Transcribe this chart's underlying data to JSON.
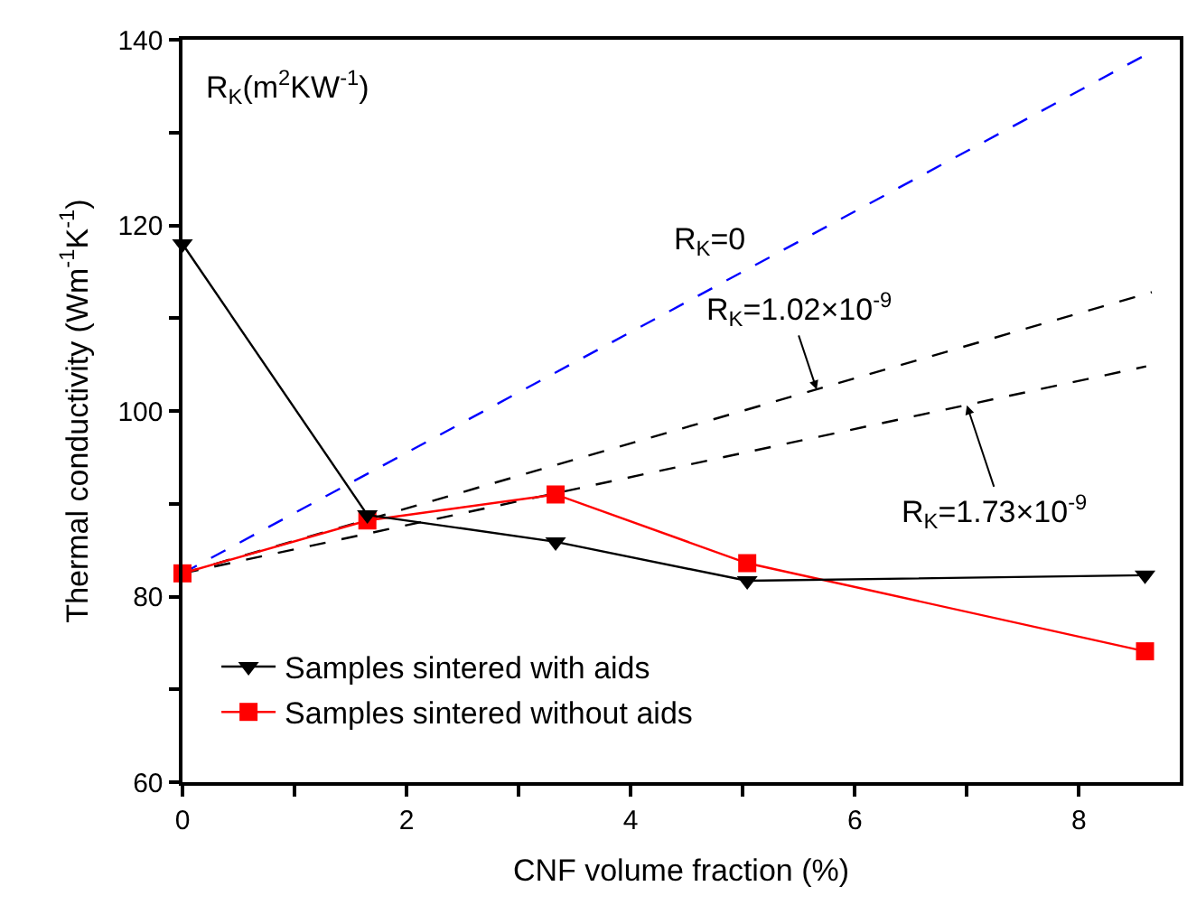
{
  "chart_data": {
    "type": "line",
    "xlabel": "CNF volume fraction (%)",
    "ylabel": "Thermal conductivity (Wm$^{-1}$K$^{-1}$)",
    "xlim": [
      0,
      8.9
    ],
    "ylim": [
      60,
      140
    ],
    "xticks": [
      0,
      {
        "value": 1,
        "label": null
      },
      2,
      {
        "value": 3,
        "label": null
      },
      4,
      {
        "value": 5,
        "label": null
      },
      6,
      {
        "value": 7,
        "label": null
      },
      8
    ],
    "yticks": [
      60,
      {
        "value": 70,
        "label": null
      },
      80,
      {
        "value": 90,
        "label": null
      },
      100,
      {
        "value": 110,
        "label": null
      },
      120,
      {
        "value": 130,
        "label": null
      },
      140
    ],
    "grid": false,
    "legend": "bottom left",
    "series": [
      {
        "name": "Samples sintered with aids",
        "color": "#000000",
        "marker": "triangle",
        "line_style": "solid",
        "x": [
          0,
          1.65,
          3.33,
          5.04,
          8.59
        ],
        "values": [
          118,
          88.8,
          85.9,
          81.7,
          82.3
        ]
      },
      {
        "name": "Samples sintered without aids",
        "color": "#ff0000",
        "marker": "square",
        "line_style": "solid",
        "x": [
          0,
          1.65,
          3.33,
          5.04,
          8.59
        ],
        "values": [
          82.5,
          88.2,
          91.0,
          83.6,
          74.1
        ]
      },
      {
        "color": "#0000ff",
        "marker": "none",
        "line_style": "dashed",
        "x": [
          0,
          8.6
        ],
        "values": [
          82.5,
          138.4
        ]
      },
      {
        "color": "#000000",
        "marker": "none",
        "line_style": "dashed",
        "x": [
          0,
          8.65
        ],
        "values": [
          82.5,
          112.8
        ]
      },
      {
        "color": "#000000",
        "marker": "none",
        "line_style": "dashed",
        "x": [
          0,
          8.6
        ],
        "values": [
          82.5,
          104.8
        ]
      }
    ],
    "annotations": [
      "R$_{K}$(m$^{2}$KW$^{-1}$)",
      "R$_{K}$=0",
      {
        "text": "R$_{K}$=1.02×10$^{-9}$",
        "x": 5.66,
        "y": 102.3
      },
      {
        "text": "R$_{K}$=1.73×10$^{-9}$",
        "x": 7.0,
        "y": 100.6
      }
    ]
  }
}
